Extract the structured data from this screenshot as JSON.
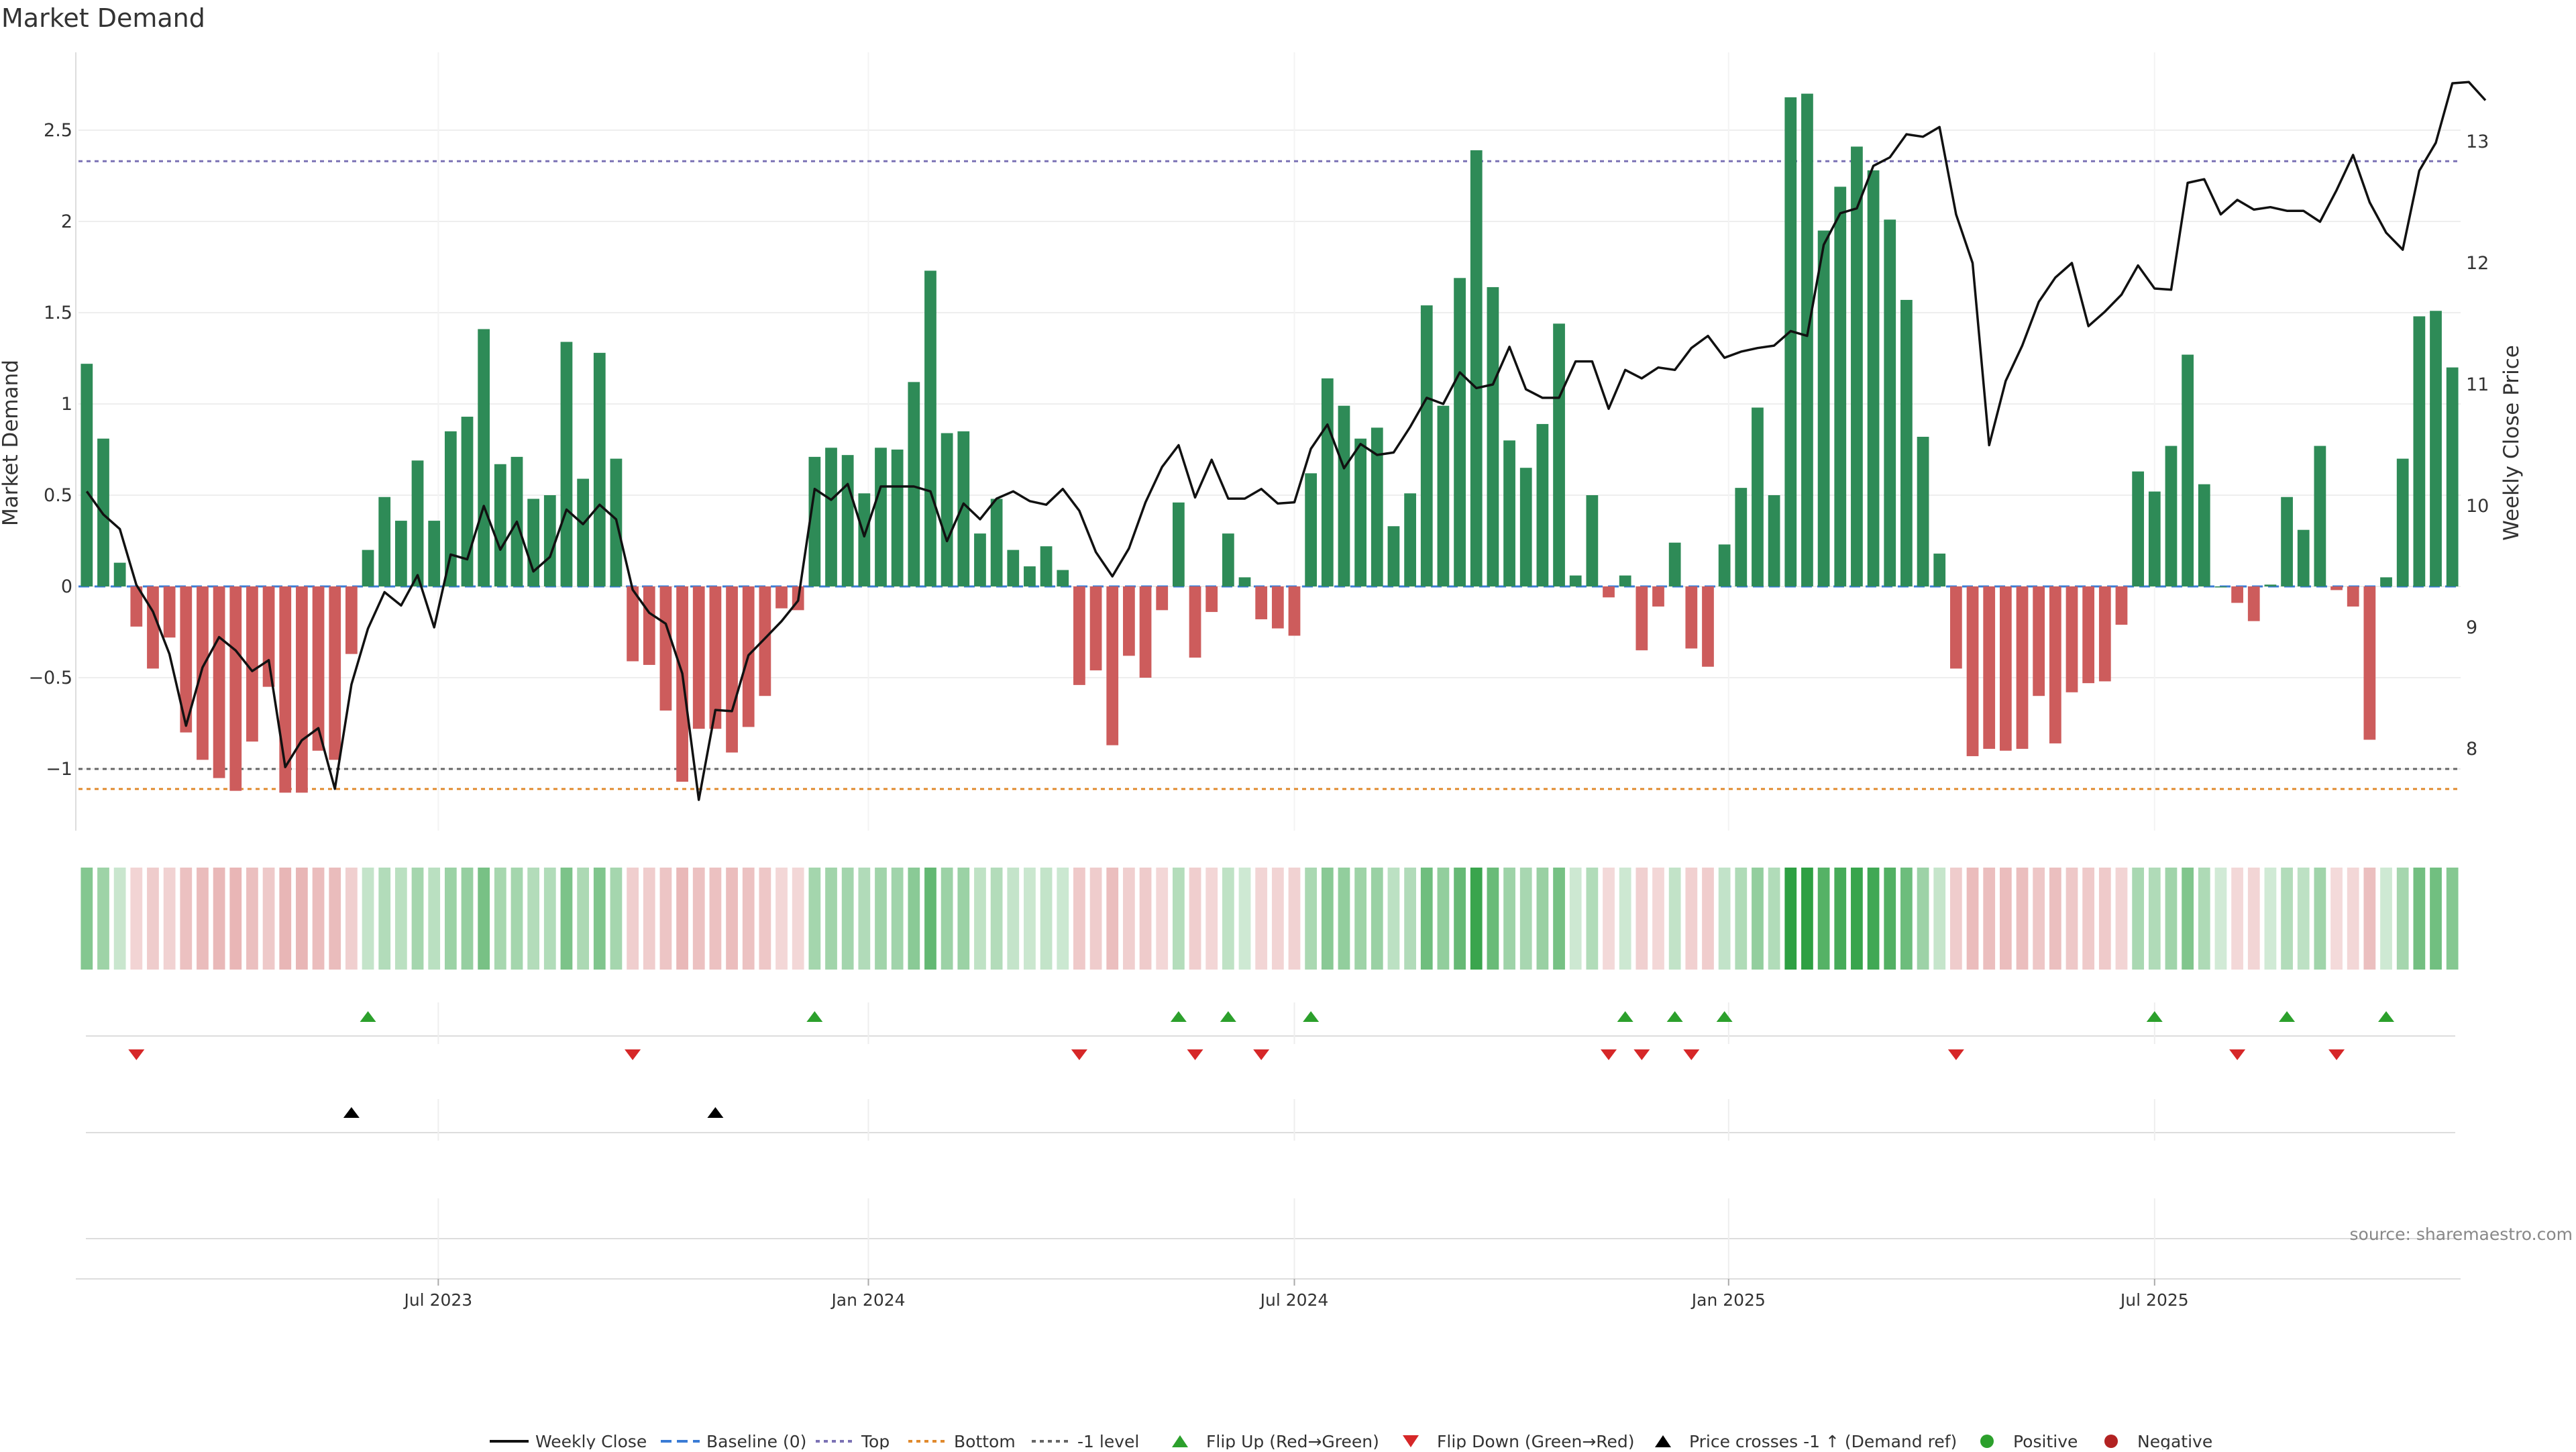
{
  "chart_data": {
    "type": "bar+line",
    "title": "Market Demand",
    "ylabel": "Market Demand",
    "y2label": "Weekly Close Price",
    "ylim": [
      -1.35,
      2.95
    ],
    "y2lim": [
      7.05,
      13.95
    ],
    "yticks": [
      -1,
      -0.5,
      0,
      0.5,
      1,
      1.5,
      2,
      2.5
    ],
    "ytick_labels": [
      "−1",
      "−0.5",
      "0",
      "0.5",
      "1",
      "1.5",
      "2",
      "2.5"
    ],
    "y2ticks": [
      8,
      9,
      10,
      11,
      12,
      13
    ],
    "y2tick_labels": [
      "8",
      "9",
      "10",
      "11",
      "12",
      "13"
    ],
    "date_ticks": [
      {
        "index": 21.25,
        "label": "Jul 2023"
      },
      {
        "index": 47.25,
        "label": "Jan 2024"
      },
      {
        "index": 73.0,
        "label": "Jul 2024"
      },
      {
        "index": 99.25,
        "label": "Jan 2025"
      },
      {
        "index": 125.0,
        "label": "Jul 2025"
      }
    ],
    "reference_lines": {
      "top": 2.33,
      "bottom": -1.11,
      "minus_one": -1.0,
      "baseline": 0
    },
    "demand": [
      1.22,
      0.81,
      0.13,
      -0.22,
      -0.45,
      -0.28,
      -0.8,
      -0.95,
      -1.05,
      -1.12,
      -0.85,
      -0.55,
      -1.13,
      -1.13,
      -0.9,
      -0.95,
      -0.37,
      0.2,
      0.49,
      0.36,
      0.69,
      0.36,
      0.85,
      0.93,
      1.41,
      0.67,
      0.71,
      0.48,
      0.5,
      1.34,
      0.59,
      1.28,
      0.7,
      -0.41,
      -0.43,
      -0.68,
      -1.07,
      -0.78,
      -0.78,
      -0.91,
      -0.77,
      -0.6,
      -0.12,
      -0.13,
      0.71,
      0.76,
      0.72,
      0.51,
      0.76,
      0.75,
      1.12,
      1.73,
      0.84,
      0.85,
      0.29,
      0.48,
      0.2,
      0.11,
      0.22,
      0.09,
      -0.54,
      -0.46,
      -0.87,
      -0.38,
      -0.5,
      -0.13,
      0.46,
      -0.39,
      -0.14,
      0.29,
      0.05,
      -0.18,
      -0.23,
      -0.27,
      0.62,
      1.14,
      0.99,
      0.81,
      0.87,
      0.33,
      0.51,
      1.54,
      0.99,
      1.69,
      2.39,
      1.64,
      0.8,
      0.65,
      0.89,
      1.44,
      0.06,
      0.5,
      -0.06,
      0.06,
      -0.35,
      -0.11,
      0.24,
      -0.34,
      -0.44,
      0.23,
      0.54,
      0.98,
      0.5,
      2.68,
      2.7,
      1.95,
      2.19,
      2.41,
      2.28,
      2.01,
      1.57,
      0.82,
      0.18,
      -0.45,
      -0.93,
      -0.89,
      -0.9,
      -0.89,
      -0.6,
      -0.86,
      -0.58,
      -0.53,
      -0.52,
      -0.21,
      0.63,
      0.52,
      0.77,
      1.27,
      0.56,
      0.0,
      -0.09,
      -0.19,
      0.01,
      0.49,
      0.31,
      0.77,
      -0.02,
      -0.11,
      -0.84,
      0.05,
      0.7,
      1.48,
      1.51,
      1.2
    ],
    "close": [
      10.12,
      9.93,
      9.81,
      9.35,
      9.13,
      8.78,
      8.19,
      8.67,
      8.92,
      8.81,
      8.64,
      8.73,
      7.85,
      8.07,
      8.17,
      7.67,
      8.53,
      8.99,
      9.29,
      9.18,
      9.43,
      9.0,
      9.6,
      9.56,
      10.0,
      9.64,
      9.87,
      9.46,
      9.58,
      9.97,
      9.85,
      10.01,
      9.89,
      9.31,
      9.12,
      9.03,
      8.62,
      7.58,
      8.32,
      8.31,
      8.77,
      8.91,
      9.05,
      9.22,
      10.14,
      10.05,
      10.18,
      9.75,
      10.16,
      10.16,
      10.16,
      10.12,
      9.71,
      10.02,
      9.89,
      10.06,
      10.12,
      10.04,
      10.01,
      10.14,
      9.96,
      9.62,
      9.42,
      9.65,
      10.03,
      10.32,
      10.5,
      10.07,
      10.38,
      10.06,
      10.06,
      10.14,
      10.02,
      10.03,
      10.47,
      10.67,
      10.31,
      10.51,
      10.42,
      10.44,
      10.65,
      10.89,
      10.84,
      11.1,
      10.97,
      11.0,
      11.31,
      10.96,
      10.89,
      10.89,
      11.19,
      11.19,
      10.8,
      11.12,
      11.05,
      11.14,
      11.12,
      11.3,
      11.4,
      11.22,
      11.27,
      11.3,
      11.32,
      11.44,
      11.4,
      12.15,
      12.41,
      12.45,
      12.8,
      12.87,
      13.06,
      13.04,
      13.12,
      12.4,
      12.0,
      10.5,
      11.03,
      11.32,
      11.68,
      11.88,
      12.0,
      11.48,
      11.6,
      11.74,
      11.98,
      11.79,
      11.78,
      12.66,
      12.69,
      12.4,
      12.52,
      12.44,
      12.46,
      12.43,
      12.43,
      12.34,
      12.6,
      12.89,
      12.5,
      12.25,
      12.11,
      12.76,
      12.99,
      13.48,
      13.49,
      13.34
    ],
    "flip_up": [
      17,
      44,
      66,
      69,
      74,
      93,
      96,
      99,
      125,
      133,
      139
    ],
    "flip_down": [
      3,
      33,
      60,
      67,
      71,
      92,
      94,
      97,
      113,
      130,
      136
    ],
    "price_crosses": [
      16,
      38
    ],
    "colors": {
      "positive": "#2e8b57",
      "negative": "#cd5c5c",
      "line": "#111111",
      "top": "#7b72b5",
      "bottom": "#e08a2e",
      "minus_one": "#666666",
      "baseline": "#3a7bd5",
      "flip_up": "#2ca02c",
      "flip_down": "#d62728",
      "cross": "#000000",
      "pos_dot": "#2ca02c",
      "neg_dot": "#b22222"
    },
    "legend": [
      {
        "label": "Weekly Close",
        "kind": "line-solid",
        "color": "#111111"
      },
      {
        "label": "Baseline (0)",
        "kind": "line-dash",
        "color": "#3a7bd5"
      },
      {
        "label": "Top",
        "kind": "line-dot",
        "color": "#7b72b5"
      },
      {
        "label": "Bottom",
        "kind": "line-dot",
        "color": "#e08a2e"
      },
      {
        "label": "-1 level",
        "kind": "line-dot",
        "color": "#666666"
      },
      {
        "label": "Flip Up (Red→Green)",
        "kind": "tri-up",
        "color": "#2ca02c"
      },
      {
        "label": "Flip Down (Green→Red)",
        "kind": "tri-down",
        "color": "#d62728"
      },
      {
        "label": "Price crosses -1 ↑ (Demand ref)",
        "kind": "tri-up",
        "color": "#000000"
      },
      {
        "label": "Positive",
        "kind": "dot",
        "color": "#2ca02c"
      },
      {
        "label": "Negative",
        "kind": "dot",
        "color": "#b22222"
      }
    ],
    "source": "source: sharemaestro.com"
  }
}
